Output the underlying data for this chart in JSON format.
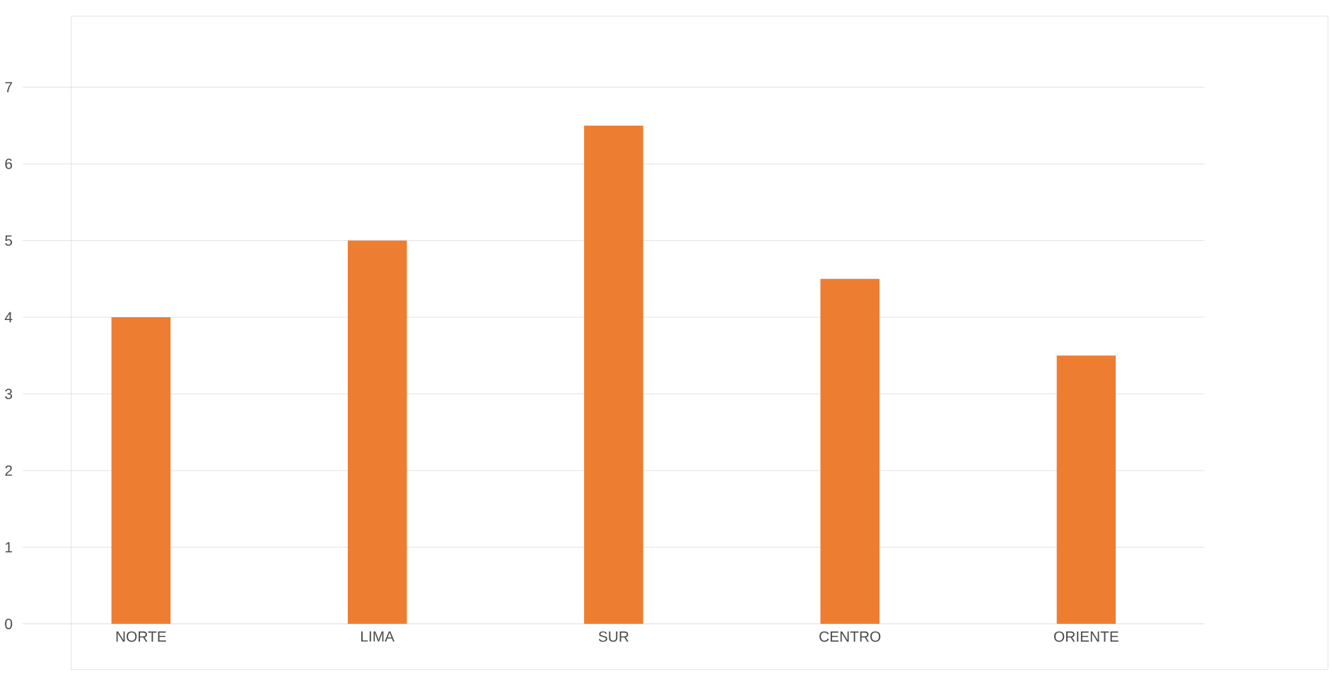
{
  "chart_data": {
    "type": "bar",
    "categories": [
      "NORTE",
      "LIMA",
      "SUR",
      "CENTRO",
      "ORIENTE"
    ],
    "values": [
      4,
      5,
      6.5,
      4.5,
      3.5
    ],
    "color": "#ed7d31",
    "ylim": [
      0,
      7
    ],
    "yticks": [
      0,
      1,
      2,
      3,
      4,
      5,
      6,
      7
    ],
    "grid": "y"
  }
}
